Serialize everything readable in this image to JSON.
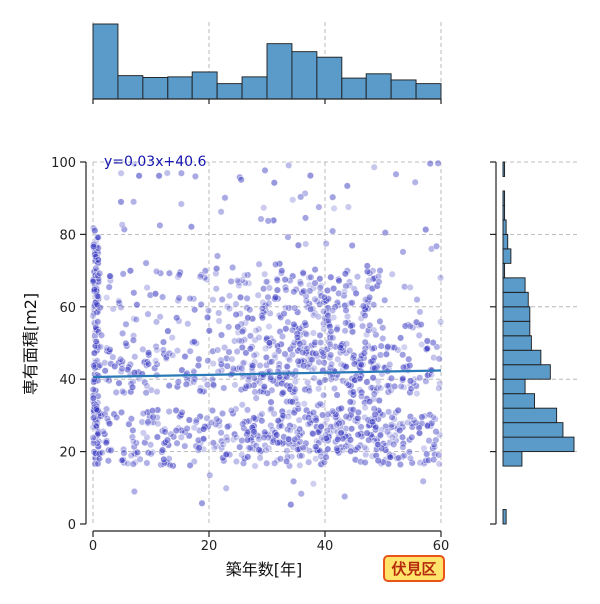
{
  "chart_data": {
    "type": "scatter",
    "title": "",
    "xlabel": "築年数[年]",
    "ylabel": "専有面積[m2]",
    "xlim": [
      0,
      60
    ],
    "ylim": [
      0,
      100
    ],
    "x_ticks": [
      "0",
      "20",
      "40",
      "60"
    ],
    "y_ticks": [
      "0",
      "20",
      "40",
      "60",
      "80",
      "100"
    ],
    "grid": true,
    "regression": {
      "label": "y=0.03x+40.6",
      "slope": 0.03,
      "intercept": 40.6,
      "color": "#2a7ab8"
    },
    "point_color": "#3535c0",
    "badge": "伏見区",
    "marginal_x_histogram": {
      "bin_edges": [
        0,
        4.3,
        8.6,
        12.9,
        17.1,
        21.4,
        25.7,
        30,
        34.3,
        38.6,
        42.9,
        47.1,
        51.4,
        55.7,
        60
      ],
      "counts": [
        122,
        38,
        35,
        36,
        44,
        25,
        36,
        90,
        77,
        68,
        34,
        41,
        31,
        25
      ]
    },
    "marginal_y_histogram": {
      "bin_edges": [
        0,
        4,
        8,
        12,
        16,
        20,
        24,
        28,
        32,
        36,
        40,
        44,
        48,
        52,
        56,
        60,
        64,
        68,
        72,
        76,
        80,
        84,
        88,
        92,
        96,
        100
      ],
      "counts": [
        2,
        0,
        0,
        0,
        12,
        45,
        38,
        34,
        20,
        14,
        30,
        24,
        18,
        17,
        17,
        16,
        14,
        1,
        5,
        3,
        2,
        1,
        1,
        0,
        1
      ]
    },
    "clusters": [
      {
        "x": [
          0,
          1
        ],
        "y": [
          18,
          82
        ],
        "n": 130
      },
      {
        "x": [
          0,
          60
        ],
        "y": [
          16,
          32
        ],
        "n": 420
      },
      {
        "x": [
          0,
          60
        ],
        "y": [
          36,
          50
        ],
        "n": 300
      },
      {
        "x": [
          25,
          50
        ],
        "y": [
          20,
          70
        ],
        "n": 380
      },
      {
        "x": [
          0,
          60
        ],
        "y": [
          50,
          70
        ],
        "n": 160
      },
      {
        "x": [
          2,
          60
        ],
        "y": [
          70,
          100
        ],
        "n": 60
      },
      {
        "x": [
          2,
          60
        ],
        "y": [
          5,
          16
        ],
        "n": 10
      }
    ]
  }
}
